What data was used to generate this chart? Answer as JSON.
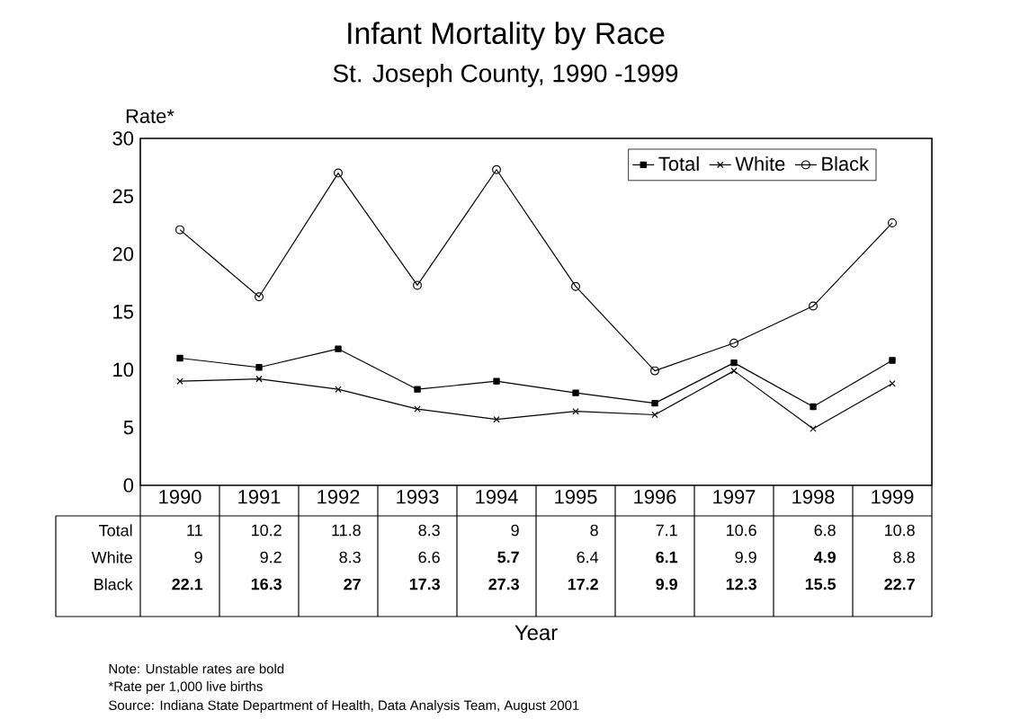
{
  "chart_data": {
    "type": "line",
    "title": "Infant Mortality by Race",
    "subtitle": "St. Joseph County, 1990 -1999",
    "ylabel": "Rate*",
    "categories": [
      "1990",
      "1991",
      "1992",
      "1993",
      "1994",
      "1995",
      "1996",
      "1997",
      "1998",
      "1999"
    ],
    "series": [
      {
        "name": "Total",
        "color": "#000000",
        "marker": "square",
        "values": [
          11,
          10.2,
          11.8,
          8.3,
          9,
          8,
          7.1,
          10.6,
          6.8,
          10.8
        ],
        "value_labels": [
          "11",
          "10.2",
          "11.8",
          "8.3",
          "9",
          "8",
          "7.1",
          "10.6",
          "6.8",
          "10.8"
        ]
      },
      {
        "name": "White",
        "color": "#000000",
        "marker": "cross",
        "values": [
          9,
          9.2,
          8.3,
          6.6,
          5.7,
          6.4,
          6.1,
          9.9,
          4.9,
          8.8
        ],
        "value_labels": [
          "9",
          "9.2",
          "8.3",
          "6.6",
          "**5.7**",
          "6.4",
          "**6.1**",
          "9.9",
          "**4.9**",
          "8.8"
        ]
      },
      {
        "name": "Black",
        "color": "#000000",
        "marker": "circle",
        "values": [
          22.1,
          16.3,
          27,
          17.3,
          27.3,
          17.2,
          9.9,
          12.3,
          15.5,
          22.7
        ],
        "value_labels": [
          "**22.1**",
          "**16.3**",
          "**27**",
          "**17.3**",
          "**27.3**",
          "**17.2**",
          "**9.9**",
          "**12.3**",
          "**15.5**",
          "**22.7**"
        ]
      }
    ],
    "ylim": [
      0,
      30
    ],
    "yticks": [
      0,
      5,
      10,
      15,
      20,
      25,
      30
    ],
    "legend": "top right",
    "grid": false,
    "line_style": "solid",
    "annotations": [
      "Year",
      "Note:  Unstable rates are bold",
      "*Rate per 1,000 live births",
      "Source:  Indiana State Department of Health, Data Analysis Team, August 2001"
    ]
  }
}
